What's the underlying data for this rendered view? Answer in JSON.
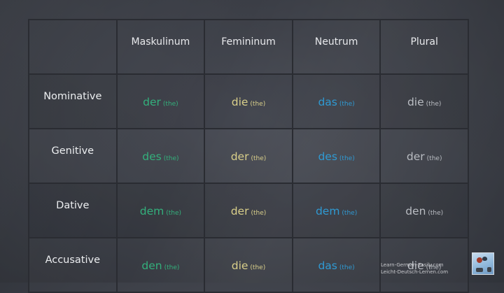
{
  "colors": {
    "masculine": "#33b07c",
    "feminine": "#d9cf8a",
    "neuter": "#2f9ad3",
    "plural": "#b9bcc2",
    "header_text": "#e8e9ec",
    "background": "#3b3e46"
  },
  "table": {
    "columns": [
      "",
      "Maskulinum",
      "Femininum",
      "Neutrum",
      "Plural"
    ],
    "rows": [
      {
        "case": "Nominative",
        "cells": [
          {
            "word": "der",
            "gloss": "(the)"
          },
          {
            "word": "die",
            "gloss": "(the)"
          },
          {
            "word": "das",
            "gloss": "(the)"
          },
          {
            "word": "die",
            "gloss": "(the)"
          }
        ]
      },
      {
        "case": "Genitive",
        "cells": [
          {
            "word": "des",
            "gloss": "(the)"
          },
          {
            "word": "der",
            "gloss": "(the)"
          },
          {
            "word": "des",
            "gloss": "(the)"
          },
          {
            "word": "der",
            "gloss": "(the)"
          }
        ]
      },
      {
        "case": "Dative",
        "cells": [
          {
            "word": "dem",
            "gloss": "(the)"
          },
          {
            "word": "der",
            "gloss": "(the)"
          },
          {
            "word": "dem",
            "gloss": "(the)"
          },
          {
            "word": "den",
            "gloss": "(the)"
          }
        ]
      },
      {
        "case": "Accusative",
        "cells": [
          {
            "word": "den",
            "gloss": "(the)"
          },
          {
            "word": "die",
            "gloss": "(the)"
          },
          {
            "word": "das",
            "gloss": "(the)"
          },
          {
            "word": "die",
            "gloss": "(the)"
          }
        ]
      }
    ]
  },
  "footer": {
    "line1": "Learn-German-Easily.com",
    "line2": "Leicht-Deutsch-Lernen.com",
    "logo_icon": "site-logo-icon"
  }
}
